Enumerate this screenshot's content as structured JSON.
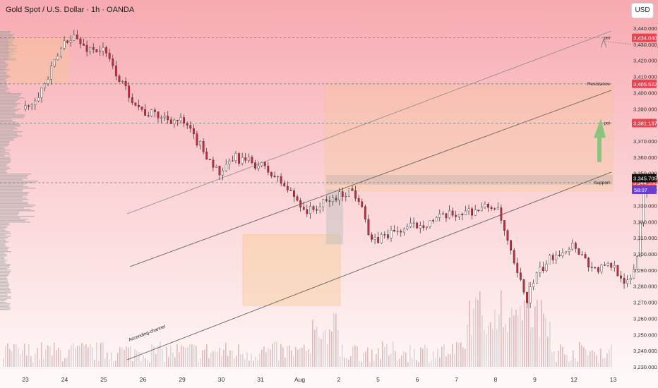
{
  "header": {
    "title": "Gold Spot / U.S. Dollar · 1h · OANDA",
    "currency": "USD"
  },
  "colors": {
    "up": "#ffffff",
    "down": "#d6253a",
    "wick": "#2b2b2b",
    "box": "#f7c98d",
    "green_arrow": "#7dc47a"
  },
  "chart_data": {
    "type": "candlestick",
    "instrument": "Gold Spot / U.S. Dollar",
    "timeframe": "1h",
    "source": "OANDA",
    "ylim": [
      3226,
      3446
    ],
    "y_ticks": [
      3440,
      3430,
      3420,
      3410,
      3400,
      3390,
      3380,
      3370,
      3360,
      3350,
      3340,
      3330,
      3320,
      3310,
      3300,
      3290,
      3280,
      3270,
      3260,
      3250,
      3240,
      3230
    ],
    "x_ticks": [
      "23",
      "24",
      "25",
      "26",
      "29",
      "30",
      "31",
      "Aug",
      "2",
      "5",
      "6",
      "7",
      "8",
      "9",
      "12",
      "13"
    ],
    "price_path": [
      [
        0,
        3390
      ],
      [
        0.5,
        3405
      ],
      [
        1,
        3432
      ],
      [
        1.2,
        3436
      ],
      [
        1.5,
        3428
      ],
      [
        2,
        3426
      ],
      [
        2.5,
        3404
      ],
      [
        3,
        3388
      ],
      [
        4,
        3382
      ],
      [
        4.5,
        3366
      ],
      [
        5,
        3348
      ],
      [
        5.3,
        3360
      ],
      [
        6,
        3355
      ],
      [
        6.5,
        3345
      ],
      [
        7,
        3332
      ],
      [
        7.2,
        3326
      ],
      [
        8,
        3336
      ],
      [
        8.3,
        3340
      ],
      [
        8.6,
        3332
      ],
      [
        8.8,
        3306
      ],
      [
        9.2,
        3312
      ],
      [
        10,
        3318
      ],
      [
        11,
        3325
      ],
      [
        12,
        3330
      ],
      [
        12.2,
        3316
      ],
      [
        12.5,
        3290
      ],
      [
        12.8,
        3272
      ],
      [
        13,
        3285
      ],
      [
        13.5,
        3300
      ],
      [
        14,
        3306
      ],
      [
        14.5,
        3290
      ],
      [
        15,
        3293
      ],
      [
        15.4,
        3280
      ],
      [
        15.6,
        3297
      ],
      [
        15.8,
        3345
      ],
      [
        16,
        3344
      ],
      [
        16.5,
        3352
      ],
      [
        17,
        3360
      ],
      [
        17.4,
        3380
      ],
      [
        17.8,
        3370
      ],
      [
        18.2,
        3358
      ],
      [
        18.8,
        3376
      ],
      [
        19.2,
        3390
      ],
      [
        19.6,
        3378
      ],
      [
        20,
        3384
      ],
      [
        20.6,
        3368
      ],
      [
        21,
        3378
      ],
      [
        21.4,
        3368
      ],
      [
        22,
        3374
      ],
      [
        22.5,
        3386
      ],
      [
        23,
        3380
      ],
      [
        23.5,
        3392
      ],
      [
        24,
        3408
      ],
      [
        24.5,
        3396
      ],
      [
        25,
        3402
      ],
      [
        25.4,
        3398
      ],
      [
        25.8,
        3380
      ],
      [
        26.2,
        3372
      ],
      [
        26.6,
        3360
      ],
      [
        27.0,
        3350
      ],
      [
        27.3,
        3344
      ],
      [
        27.5,
        3336
      ],
      [
        27.8,
        3348
      ],
      [
        28.0,
        3344
      ]
    ],
    "levels": [
      {
        "label": "poi",
        "price": 3434.04,
        "price_label": "3,434.040"
      },
      {
        "label": "Resistance",
        "price": 3405.522,
        "price_label": "3,405.522"
      },
      {
        "label": "poi",
        "price": 3381.137,
        "price_label": "3,381.137"
      },
      {
        "label": "Support",
        "price": 3344.2,
        "price_label": "3,344.200"
      }
    ],
    "current_price": {
      "value": 3345.705,
      "label": "3,345.705",
      "countdown": "58:07"
    },
    "annotations": [
      {
        "text": "Ascending-channel"
      }
    ],
    "volume_profile": true,
    "volume_bars": true,
    "grid": false
  }
}
